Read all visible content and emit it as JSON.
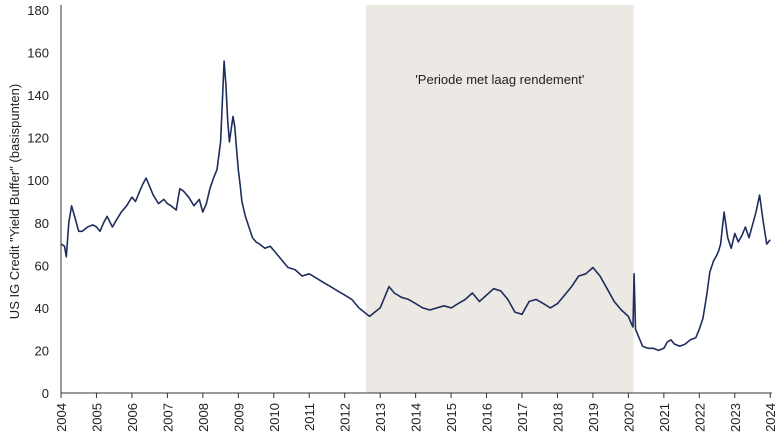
{
  "chart_data": {
    "type": "line",
    "ylabel": "US IG Credit \"Yield Buffer\" (basispunten)",
    "xlabel": "",
    "ylim": [
      0,
      180
    ],
    "xlim": [
      2004.0,
      2024.05
    ],
    "y_ticks": [
      0,
      20,
      40,
      60,
      80,
      100,
      120,
      140,
      160,
      180
    ],
    "x_ticks": [
      "2004",
      "2005",
      "2006",
      "2007",
      "2008",
      "2009",
      "2010",
      "2011",
      "2012",
      "2013",
      "2014",
      "2015",
      "2016",
      "2017",
      "2018",
      "2019",
      "2020",
      "2021",
      "2022",
      "2023",
      "2024"
    ],
    "grid": false,
    "shaded_region": {
      "start": 2012.6,
      "end": 2020.15,
      "label": "'Periode met laag rendement'",
      "color": "#ece8e3"
    },
    "series": [
      {
        "color": "#1f2d5c",
        "x": [
          2004.0,
          2004.1,
          2004.15,
          2004.22,
          2004.3,
          2004.4,
          2004.5,
          2004.6,
          2004.75,
          2004.9,
          2005.0,
          2005.1,
          2005.2,
          2005.3,
          2005.45,
          2005.55,
          2005.7,
          2005.85,
          2006.0,
          2006.1,
          2006.2,
          2006.3,
          2006.4,
          2006.5,
          2006.6,
          2006.75,
          2006.9,
          2007.0,
          2007.1,
          2007.25,
          2007.35,
          2007.45,
          2007.6,
          2007.75,
          2007.9,
          2008.0,
          2008.1,
          2008.2,
          2008.3,
          2008.4,
          2008.5,
          2008.6,
          2008.65,
          2008.7,
          2008.75,
          2008.8,
          2008.85,
          2008.9,
          2008.95,
          2009.0,
          2009.05,
          2009.1,
          2009.2,
          2009.3,
          2009.4,
          2009.5,
          2009.6,
          2009.75,
          2009.9,
          2010.0,
          2010.2,
          2010.4,
          2010.6,
          2010.8,
          2011.0,
          2011.2,
          2011.4,
          2011.6,
          2011.8,
          2012.0,
          2012.2,
          2012.4,
          2012.55,
          2012.7,
          2012.85,
          2013.0,
          2013.1,
          2013.25,
          2013.4,
          2013.6,
          2013.8,
          2014.0,
          2014.2,
          2014.4,
          2014.6,
          2014.8,
          2015.0,
          2015.2,
          2015.4,
          2015.6,
          2015.8,
          2016.0,
          2016.2,
          2016.4,
          2016.6,
          2016.8,
          2017.0,
          2017.2,
          2017.4,
          2017.6,
          2017.8,
          2018.0,
          2018.2,
          2018.4,
          2018.6,
          2018.8,
          2019.0,
          2019.2,
          2019.4,
          2019.6,
          2019.8,
          2020.0,
          2020.1,
          2020.13,
          2020.16,
          2020.2,
          2020.3,
          2020.4,
          2020.55,
          2020.7,
          2020.85,
          2021.0,
          2021.1,
          2021.2,
          2021.3,
          2021.45,
          2021.6,
          2021.75,
          2021.9,
          2022.0,
          2022.1,
          2022.2,
          2022.3,
          2022.4,
          2022.5,
          2022.55,
          2022.6,
          2022.7,
          2022.8,
          2022.9,
          2023.0,
          2023.1,
          2023.2,
          2023.3,
          2023.4,
          2023.5,
          2023.6,
          2023.7,
          2023.8,
          2023.9,
          2024.0
        ],
        "values": [
          70,
          69,
          64,
          80,
          88,
          82,
          76,
          76,
          78,
          79,
          78,
          76,
          80,
          83,
          78,
          81,
          85,
          88,
          92,
          90,
          94,
          98,
          101,
          97,
          93,
          89,
          91,
          89,
          88,
          86,
          96,
          95,
          92,
          88,
          91,
          85,
          89,
          96,
          101,
          105,
          118,
          156,
          145,
          128,
          118,
          124,
          130,
          125,
          115,
          105,
          98,
          90,
          83,
          78,
          73,
          71,
          70,
          68,
          69,
          67,
          63,
          59,
          58,
          55,
          56,
          54,
          52,
          50,
          48,
          46,
          44,
          40,
          38,
          36,
          38,
          40,
          44,
          50,
          47,
          45,
          44,
          42,
          40,
          39,
          40,
          41,
          40,
          42,
          44,
          47,
          43,
          46,
          49,
          48,
          44,
          38,
          37,
          43,
          44,
          42,
          40,
          42,
          46,
          50,
          55,
          56,
          59,
          55,
          49,
          43,
          39,
          36,
          32,
          31,
          56,
          30,
          26,
          22,
          21,
          21,
          20,
          21,
          24,
          25,
          23,
          22,
          23,
          25,
          26,
          30,
          35,
          45,
          57,
          62,
          65,
          67,
          70,
          85,
          73,
          68,
          75,
          71,
          74,
          78,
          73,
          79,
          85,
          93,
          81,
          70,
          72
        ]
      }
    ]
  }
}
